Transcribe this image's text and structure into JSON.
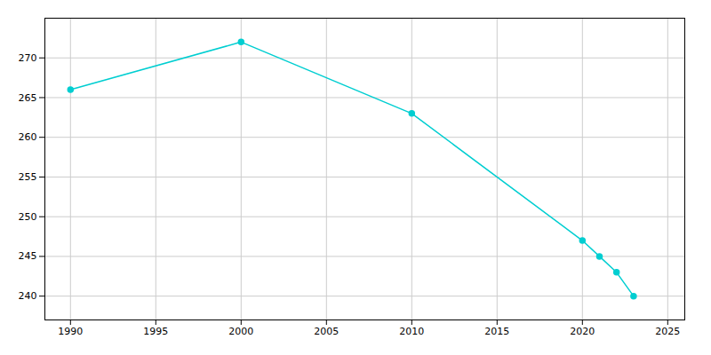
{
  "chart_data": {
    "type": "line",
    "x": [
      1990,
      2000,
      2010,
      2020,
      2021,
      2022,
      2023
    ],
    "values": [
      266,
      272,
      263,
      247,
      245,
      243,
      240
    ],
    "color": "#00CED1",
    "marker": "circle",
    "xlim": [
      1988.5,
      2026
    ],
    "ylim": [
      237,
      275
    ],
    "xticks": [
      1990,
      1995,
      2000,
      2005,
      2010,
      2015,
      2020,
      2025
    ],
    "yticks": [
      240,
      245,
      250,
      255,
      260,
      265,
      270
    ],
    "grid": true
  }
}
